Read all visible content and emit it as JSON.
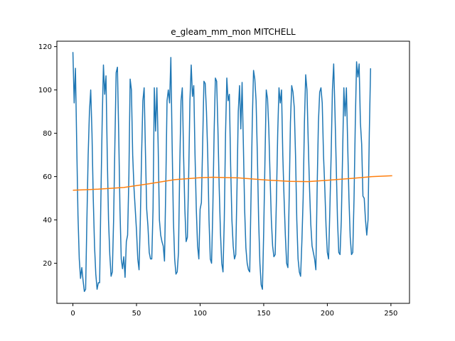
{
  "chart_data": {
    "type": "line",
    "title": "e_gleam_mm_mon MITCHELL",
    "xlabel": "",
    "ylabel": "",
    "xlim": [
      -12.6,
      264.6
    ],
    "ylim": [
      1.5,
      122.5
    ],
    "x_ticks": [
      0,
      50,
      100,
      150,
      200,
      250
    ],
    "y_ticks": [
      20,
      40,
      60,
      80,
      100,
      120
    ],
    "grid": false,
    "legend": "none",
    "series": [
      {
        "color": "#1f77b4",
        "points": [
          [
            0,
            117.5
          ],
          [
            1,
            94
          ],
          [
            2,
            110
          ],
          [
            3,
            75
          ],
          [
            4,
            42
          ],
          [
            5,
            22
          ],
          [
            6,
            13
          ],
          [
            7,
            18
          ],
          [
            8,
            12
          ],
          [
            9,
            7
          ],
          [
            10,
            8
          ],
          [
            11,
            40
          ],
          [
            12,
            70
          ],
          [
            13,
            90
          ],
          [
            14,
            100
          ],
          [
            15,
            80
          ],
          [
            16,
            50
          ],
          [
            17,
            28
          ],
          [
            18,
            15
          ],
          [
            19,
            8
          ],
          [
            20,
            11
          ],
          [
            21,
            11
          ],
          [
            22,
            50
          ],
          [
            23,
            85
          ],
          [
            24,
            111.5
          ],
          [
            25,
            98
          ],
          [
            26,
            106.5
          ],
          [
            27,
            70
          ],
          [
            28,
            40
          ],
          [
            29,
            24
          ],
          [
            30,
            14
          ],
          [
            31,
            16
          ],
          [
            32,
            40
          ],
          [
            33,
            75
          ],
          [
            34,
            108
          ],
          [
            35,
            110.5
          ],
          [
            36,
            80
          ],
          [
            37,
            45
          ],
          [
            38,
            22
          ],
          [
            39,
            17.5
          ],
          [
            40,
            23
          ],
          [
            41,
            13.5
          ],
          [
            42,
            30
          ],
          [
            43,
            33
          ],
          [
            44,
            60
          ],
          [
            45,
            105
          ],
          [
            46,
            100
          ],
          [
            47,
            70
          ],
          [
            48,
            55
          ],
          [
            49,
            45
          ],
          [
            50,
            35
          ],
          [
            51,
            22
          ],
          [
            52,
            17
          ],
          [
            53,
            40
          ],
          [
            54,
            70
          ],
          [
            55,
            95
          ],
          [
            56,
            101
          ],
          [
            57,
            72
          ],
          [
            58,
            45
          ],
          [
            59,
            37
          ],
          [
            60,
            25
          ],
          [
            61,
            22
          ],
          [
            62,
            22
          ],
          [
            63,
            45
          ],
          [
            64,
            101
          ],
          [
            65,
            81
          ],
          [
            66,
            101
          ],
          [
            67,
            75
          ],
          [
            68,
            40
          ],
          [
            69,
            33
          ],
          [
            70,
            30
          ],
          [
            71,
            28
          ],
          [
            72,
            21
          ],
          [
            73,
            55
          ],
          [
            74,
            95
          ],
          [
            75,
            100
          ],
          [
            76,
            94
          ],
          [
            77,
            115
          ],
          [
            78,
            75
          ],
          [
            79,
            40
          ],
          [
            80,
            22
          ],
          [
            81,
            15
          ],
          [
            82,
            16
          ],
          [
            83,
            25
          ],
          [
            84,
            65
          ],
          [
            85,
            95
          ],
          [
            86,
            101
          ],
          [
            87,
            70
          ],
          [
            88,
            45
          ],
          [
            89,
            30
          ],
          [
            90,
            32
          ],
          [
            91,
            60
          ],
          [
            92,
            95
          ],
          [
            93,
            111.5
          ],
          [
            94,
            97
          ],
          [
            95,
            102
          ],
          [
            96,
            70
          ],
          [
            97,
            45
          ],
          [
            98,
            28
          ],
          [
            99,
            22
          ],
          [
            100,
            45
          ],
          [
            101,
            48
          ],
          [
            102,
            75
          ],
          [
            103,
            104
          ],
          [
            104,
            103
          ],
          [
            105,
            90
          ],
          [
            106,
            70
          ],
          [
            107,
            40
          ],
          [
            108,
            22
          ],
          [
            109,
            20
          ],
          [
            110,
            45
          ],
          [
            111,
            80
          ],
          [
            112,
            105.5
          ],
          [
            113,
            104
          ],
          [
            114,
            82
          ],
          [
            115,
            55
          ],
          [
            116,
            34
          ],
          [
            117,
            20
          ],
          [
            118,
            16
          ],
          [
            119,
            40
          ],
          [
            120,
            80
          ],
          [
            121,
            105.5
          ],
          [
            122,
            95
          ],
          [
            123,
            98
          ],
          [
            124,
            65
          ],
          [
            125,
            40
          ],
          [
            126,
            28
          ],
          [
            127,
            22
          ],
          [
            128,
            24
          ],
          [
            129,
            55
          ],
          [
            130,
            90
          ],
          [
            131,
            102
          ],
          [
            132,
            82
          ],
          [
            133,
            103.5
          ],
          [
            134,
            75
          ],
          [
            135,
            45
          ],
          [
            136,
            27
          ],
          [
            137,
            20
          ],
          [
            138,
            17
          ],
          [
            139,
            16
          ],
          [
            140,
            50
          ],
          [
            141,
            85
          ],
          [
            142,
            109
          ],
          [
            143,
            105
          ],
          [
            144,
            95
          ],
          [
            145,
            70
          ],
          [
            146,
            40
          ],
          [
            147,
            20
          ],
          [
            148,
            10
          ],
          [
            149,
            8
          ],
          [
            150,
            35
          ],
          [
            151,
            68
          ],
          [
            152,
            100
          ],
          [
            153,
            96
          ],
          [
            154,
            82
          ],
          [
            155,
            60
          ],
          [
            156,
            40
          ],
          [
            157,
            28
          ],
          [
            158,
            23
          ],
          [
            159,
            24
          ],
          [
            160,
            50
          ],
          [
            161,
            80
          ],
          [
            162,
            101
          ],
          [
            163,
            94
          ],
          [
            164,
            100
          ],
          [
            165,
            70
          ],
          [
            166,
            50
          ],
          [
            167,
            33
          ],
          [
            168,
            20
          ],
          [
            169,
            18
          ],
          [
            170,
            50
          ],
          [
            171,
            85
          ],
          [
            172,
            102
          ],
          [
            173,
            99
          ],
          [
            174,
            92
          ],
          [
            175,
            70
          ],
          [
            176,
            40
          ],
          [
            177,
            22
          ],
          [
            178,
            16
          ],
          [
            179,
            14
          ],
          [
            180,
            30
          ],
          [
            181,
            50
          ],
          [
            182,
            85
          ],
          [
            183,
            107
          ],
          [
            184,
            100
          ],
          [
            185,
            76
          ],
          [
            186,
            55
          ],
          [
            187,
            38
          ],
          [
            188,
            28
          ],
          [
            189,
            25
          ],
          [
            190,
            22
          ],
          [
            191,
            17
          ],
          [
            192,
            55
          ],
          [
            193,
            85
          ],
          [
            194,
            99
          ],
          [
            195,
            101
          ],
          [
            196,
            94
          ],
          [
            197,
            70
          ],
          [
            198,
            55
          ],
          [
            199,
            37
          ],
          [
            200,
            25
          ],
          [
            201,
            22
          ],
          [
            202,
            45
          ],
          [
            203,
            70
          ],
          [
            204,
            100
          ],
          [
            205,
            112
          ],
          [
            206,
            90
          ],
          [
            207,
            65
          ],
          [
            208,
            40
          ],
          [
            209,
            25
          ],
          [
            210,
            24
          ],
          [
            211,
            40
          ],
          [
            212,
            70
          ],
          [
            213,
            101
          ],
          [
            214,
            88
          ],
          [
            215,
            101
          ],
          [
            216,
            75
          ],
          [
            217,
            50
          ],
          [
            218,
            32
          ],
          [
            219,
            24
          ],
          [
            220,
            25
          ],
          [
            221,
            50
          ],
          [
            222,
            85
          ],
          [
            223,
            113
          ],
          [
            224,
            106
          ],
          [
            225,
            112
          ],
          [
            226,
            85
          ],
          [
            227,
            75
          ],
          [
            228,
            51
          ],
          [
            229,
            50
          ],
          [
            230,
            40
          ],
          [
            231,
            33
          ],
          [
            232,
            40
          ],
          [
            233,
            80
          ],
          [
            234,
            110
          ]
        ]
      },
      {
        "color": "#ff7f0e",
        "points": [
          [
            0,
            53.7
          ],
          [
            20,
            54.2
          ],
          [
            40,
            55.0
          ],
          [
            60,
            56.7
          ],
          [
            80,
            58.6
          ],
          [
            100,
            59.5
          ],
          [
            110,
            59.7
          ],
          [
            130,
            59.4
          ],
          [
            150,
            58.5
          ],
          [
            170,
            57.8
          ],
          [
            185,
            57.7
          ],
          [
            200,
            58.3
          ],
          [
            220,
            59.2
          ],
          [
            235,
            60.0
          ],
          [
            251,
            60.4
          ]
        ]
      }
    ]
  }
}
